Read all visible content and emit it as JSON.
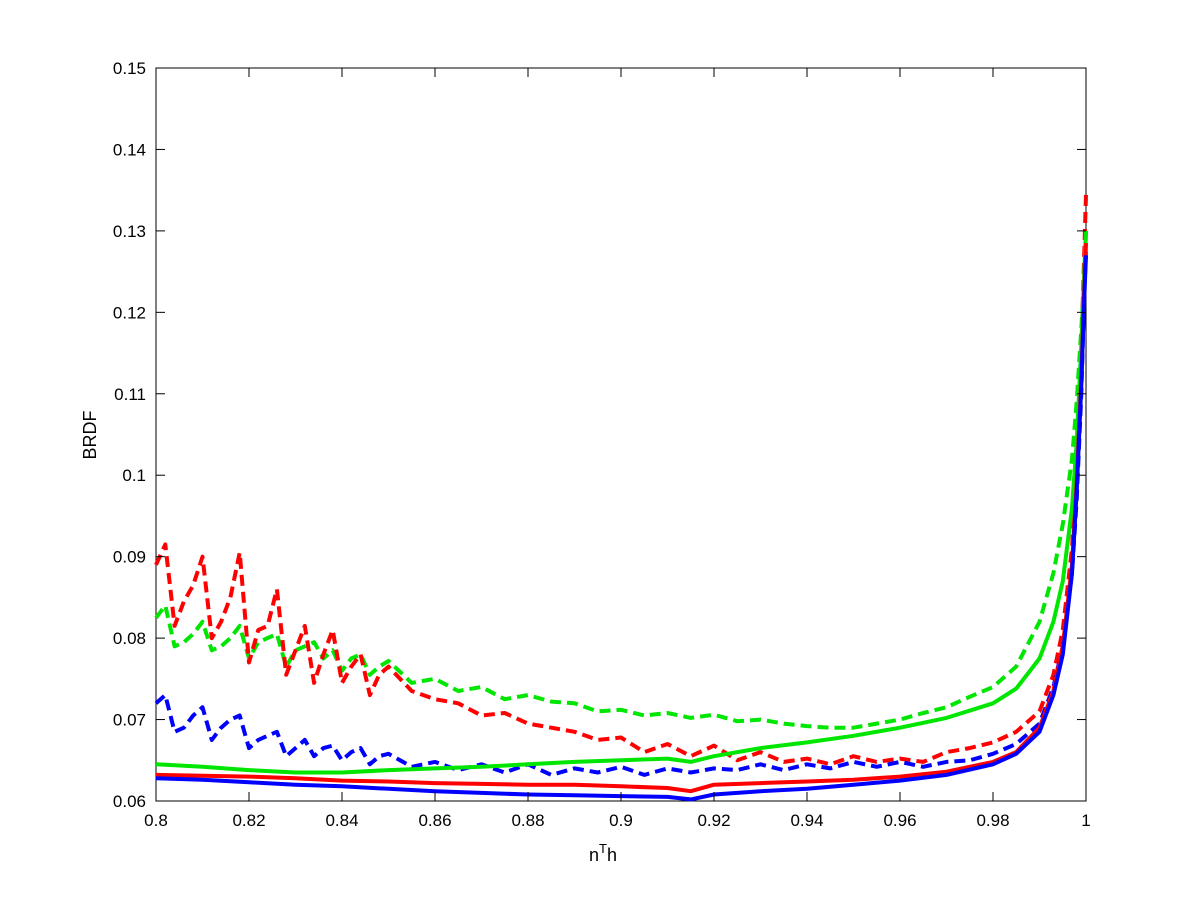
{
  "chart_data": {
    "type": "line",
    "title": "",
    "xlabel_base": "n",
    "xlabel_sup": "T",
    "xlabel_tail": "h",
    "ylabel": "BRDF",
    "xlim": [
      0.8,
      1.0
    ],
    "ylim": [
      0.06,
      0.15
    ],
    "xticks": [
      0.8,
      0.82,
      0.84,
      0.86,
      0.88,
      0.9,
      0.92,
      0.94,
      0.96,
      0.98,
      1.0
    ],
    "xtick_labels": [
      "0.8",
      "0.82",
      "0.84",
      "0.86",
      "0.88",
      "0.9",
      "0.92",
      "0.94",
      "0.96",
      "0.98",
      "1"
    ],
    "yticks": [
      0.06,
      0.07,
      0.08,
      0.09,
      0.1,
      0.11,
      0.12,
      0.13,
      0.14,
      0.15
    ],
    "ytick_labels": [
      "0.06",
      "0.07",
      "0.08",
      "0.09",
      "0.1",
      "0.11",
      "0.12",
      "0.13",
      "0.14",
      "0.15"
    ],
    "grid": false,
    "legend": "none",
    "series": [
      {
        "color": "#00e600",
        "style": "dashed",
        "x": [
          0.8,
          0.802,
          0.804,
          0.806,
          0.808,
          0.81,
          0.812,
          0.814,
          0.816,
          0.818,
          0.82,
          0.822,
          0.824,
          0.826,
          0.828,
          0.83,
          0.832,
          0.834,
          0.836,
          0.838,
          0.84,
          0.842,
          0.844,
          0.846,
          0.848,
          0.85,
          0.855,
          0.86,
          0.865,
          0.87,
          0.875,
          0.88,
          0.885,
          0.89,
          0.895,
          0.9,
          0.905,
          0.91,
          0.915,
          0.92,
          0.925,
          0.93,
          0.935,
          0.94,
          0.945,
          0.95,
          0.955,
          0.96,
          0.965,
          0.97,
          0.975,
          0.98,
          0.985,
          0.99,
          0.993,
          0.995,
          0.997,
          0.998,
          0.999,
          0.9995,
          1.0
        ],
        "y": [
          0.0825,
          0.084,
          0.079,
          0.0795,
          0.0805,
          0.082,
          0.0785,
          0.079,
          0.08,
          0.0815,
          0.0775,
          0.0795,
          0.08,
          0.0805,
          0.0765,
          0.0785,
          0.079,
          0.0795,
          0.0775,
          0.0785,
          0.076,
          0.0775,
          0.078,
          0.0755,
          0.0765,
          0.0772,
          0.0745,
          0.075,
          0.0735,
          0.074,
          0.0725,
          0.073,
          0.0722,
          0.072,
          0.071,
          0.0712,
          0.0705,
          0.0708,
          0.0702,
          0.0706,
          0.0698,
          0.07,
          0.0695,
          0.0692,
          0.069,
          0.069,
          0.0695,
          0.07,
          0.0708,
          0.0715,
          0.0728,
          0.074,
          0.0765,
          0.082,
          0.088,
          0.094,
          0.102,
          0.109,
          0.118,
          0.123,
          0.13
        ]
      },
      {
        "color": "#ff0000",
        "style": "dashed",
        "x": [
          0.8,
          0.802,
          0.804,
          0.806,
          0.808,
          0.81,
          0.812,
          0.814,
          0.816,
          0.818,
          0.82,
          0.822,
          0.824,
          0.826,
          0.828,
          0.83,
          0.832,
          0.834,
          0.836,
          0.838,
          0.84,
          0.842,
          0.844,
          0.846,
          0.848,
          0.85,
          0.855,
          0.86,
          0.865,
          0.87,
          0.875,
          0.88,
          0.885,
          0.89,
          0.895,
          0.9,
          0.905,
          0.91,
          0.915,
          0.92,
          0.925,
          0.93,
          0.935,
          0.94,
          0.945,
          0.95,
          0.955,
          0.96,
          0.965,
          0.97,
          0.975,
          0.98,
          0.985,
          0.99,
          0.993,
          0.995,
          0.997,
          0.998,
          0.999,
          0.9995,
          1.0
        ],
        "y": [
          0.089,
          0.0915,
          0.0815,
          0.0845,
          0.0865,
          0.09,
          0.08,
          0.082,
          0.085,
          0.0905,
          0.077,
          0.081,
          0.0815,
          0.086,
          0.0755,
          0.0785,
          0.0815,
          0.0745,
          0.078,
          0.081,
          0.0745,
          0.0765,
          0.078,
          0.073,
          0.0755,
          0.0765,
          0.0735,
          0.0725,
          0.072,
          0.0705,
          0.0708,
          0.0695,
          0.069,
          0.0685,
          0.0675,
          0.0678,
          0.066,
          0.067,
          0.0655,
          0.0668,
          0.065,
          0.066,
          0.0648,
          0.0652,
          0.0645,
          0.0655,
          0.0648,
          0.0652,
          0.0648,
          0.066,
          0.0665,
          0.0672,
          0.0685,
          0.071,
          0.0755,
          0.081,
          0.091,
          0.102,
          0.115,
          0.125,
          0.1345
        ]
      },
      {
        "color": "#0000ff",
        "style": "dashed",
        "x": [
          0.8,
          0.802,
          0.804,
          0.806,
          0.808,
          0.81,
          0.812,
          0.814,
          0.816,
          0.818,
          0.82,
          0.822,
          0.824,
          0.826,
          0.828,
          0.83,
          0.832,
          0.834,
          0.836,
          0.838,
          0.84,
          0.842,
          0.844,
          0.846,
          0.848,
          0.85,
          0.855,
          0.86,
          0.865,
          0.87,
          0.875,
          0.88,
          0.885,
          0.89,
          0.895,
          0.9,
          0.905,
          0.91,
          0.915,
          0.92,
          0.925,
          0.93,
          0.935,
          0.94,
          0.945,
          0.95,
          0.955,
          0.96,
          0.965,
          0.97,
          0.975,
          0.98,
          0.985,
          0.99,
          0.993,
          0.995,
          0.997,
          0.998,
          0.999,
          0.9995,
          1.0
        ],
        "y": [
          0.072,
          0.073,
          0.0685,
          0.069,
          0.0705,
          0.0715,
          0.0675,
          0.069,
          0.07,
          0.0705,
          0.0665,
          0.0675,
          0.068,
          0.0685,
          0.0655,
          0.0665,
          0.0675,
          0.0655,
          0.0665,
          0.0668,
          0.065,
          0.066,
          0.0665,
          0.0645,
          0.0655,
          0.0658,
          0.0642,
          0.0648,
          0.0638,
          0.0645,
          0.0635,
          0.0645,
          0.0632,
          0.064,
          0.0635,
          0.0642,
          0.0632,
          0.064,
          0.0635,
          0.064,
          0.0638,
          0.0645,
          0.0638,
          0.0645,
          0.064,
          0.0648,
          0.0642,
          0.0648,
          0.0642,
          0.0648,
          0.065,
          0.0658,
          0.067,
          0.0695,
          0.074,
          0.079,
          0.088,
          0.097,
          0.11,
          0.12,
          0.128
        ]
      },
      {
        "color": "#00e600",
        "style": "solid",
        "x": [
          0.8,
          0.81,
          0.82,
          0.83,
          0.84,
          0.85,
          0.86,
          0.87,
          0.88,
          0.89,
          0.9,
          0.91,
          0.915,
          0.92,
          0.93,
          0.94,
          0.95,
          0.96,
          0.97,
          0.98,
          0.985,
          0.99,
          0.993,
          0.995,
          0.997,
          0.998,
          0.999,
          0.9995,
          1.0
        ],
        "y": [
          0.0645,
          0.0642,
          0.0638,
          0.0635,
          0.0635,
          0.0638,
          0.064,
          0.0642,
          0.0645,
          0.0648,
          0.065,
          0.0652,
          0.0648,
          0.0655,
          0.0665,
          0.0672,
          0.068,
          0.069,
          0.0702,
          0.072,
          0.0738,
          0.0775,
          0.082,
          0.087,
          0.096,
          0.104,
          0.116,
          0.123,
          0.13
        ]
      },
      {
        "color": "#ff0000",
        "style": "solid",
        "x": [
          0.8,
          0.81,
          0.82,
          0.83,
          0.84,
          0.85,
          0.86,
          0.87,
          0.88,
          0.89,
          0.9,
          0.91,
          0.915,
          0.92,
          0.93,
          0.94,
          0.95,
          0.96,
          0.97,
          0.98,
          0.985,
          0.99,
          0.993,
          0.995,
          0.997,
          0.998,
          0.999,
          0.9995,
          1.0
        ],
        "y": [
          0.0632,
          0.0631,
          0.063,
          0.0628,
          0.0625,
          0.0624,
          0.0622,
          0.0621,
          0.062,
          0.062,
          0.0618,
          0.0616,
          0.0612,
          0.062,
          0.0622,
          0.0624,
          0.0626,
          0.063,
          0.0636,
          0.0648,
          0.066,
          0.069,
          0.0735,
          0.079,
          0.089,
          0.099,
          0.112,
          0.121,
          0.1285
        ]
      },
      {
        "color": "#0000ff",
        "style": "solid",
        "x": [
          0.8,
          0.81,
          0.82,
          0.83,
          0.84,
          0.85,
          0.86,
          0.87,
          0.88,
          0.89,
          0.9,
          0.91,
          0.915,
          0.92,
          0.93,
          0.94,
          0.95,
          0.96,
          0.97,
          0.98,
          0.985,
          0.99,
          0.993,
          0.995,
          0.997,
          0.998,
          0.999,
          0.9995,
          1.0
        ],
        "y": [
          0.0628,
          0.0626,
          0.0623,
          0.062,
          0.0618,
          0.0615,
          0.0612,
          0.061,
          0.0608,
          0.0607,
          0.0606,
          0.0605,
          0.0602,
          0.0608,
          0.0612,
          0.0615,
          0.062,
          0.0625,
          0.0632,
          0.0645,
          0.0658,
          0.0685,
          0.073,
          0.078,
          0.088,
          0.098,
          0.111,
          0.12,
          0.127
        ]
      }
    ]
  }
}
